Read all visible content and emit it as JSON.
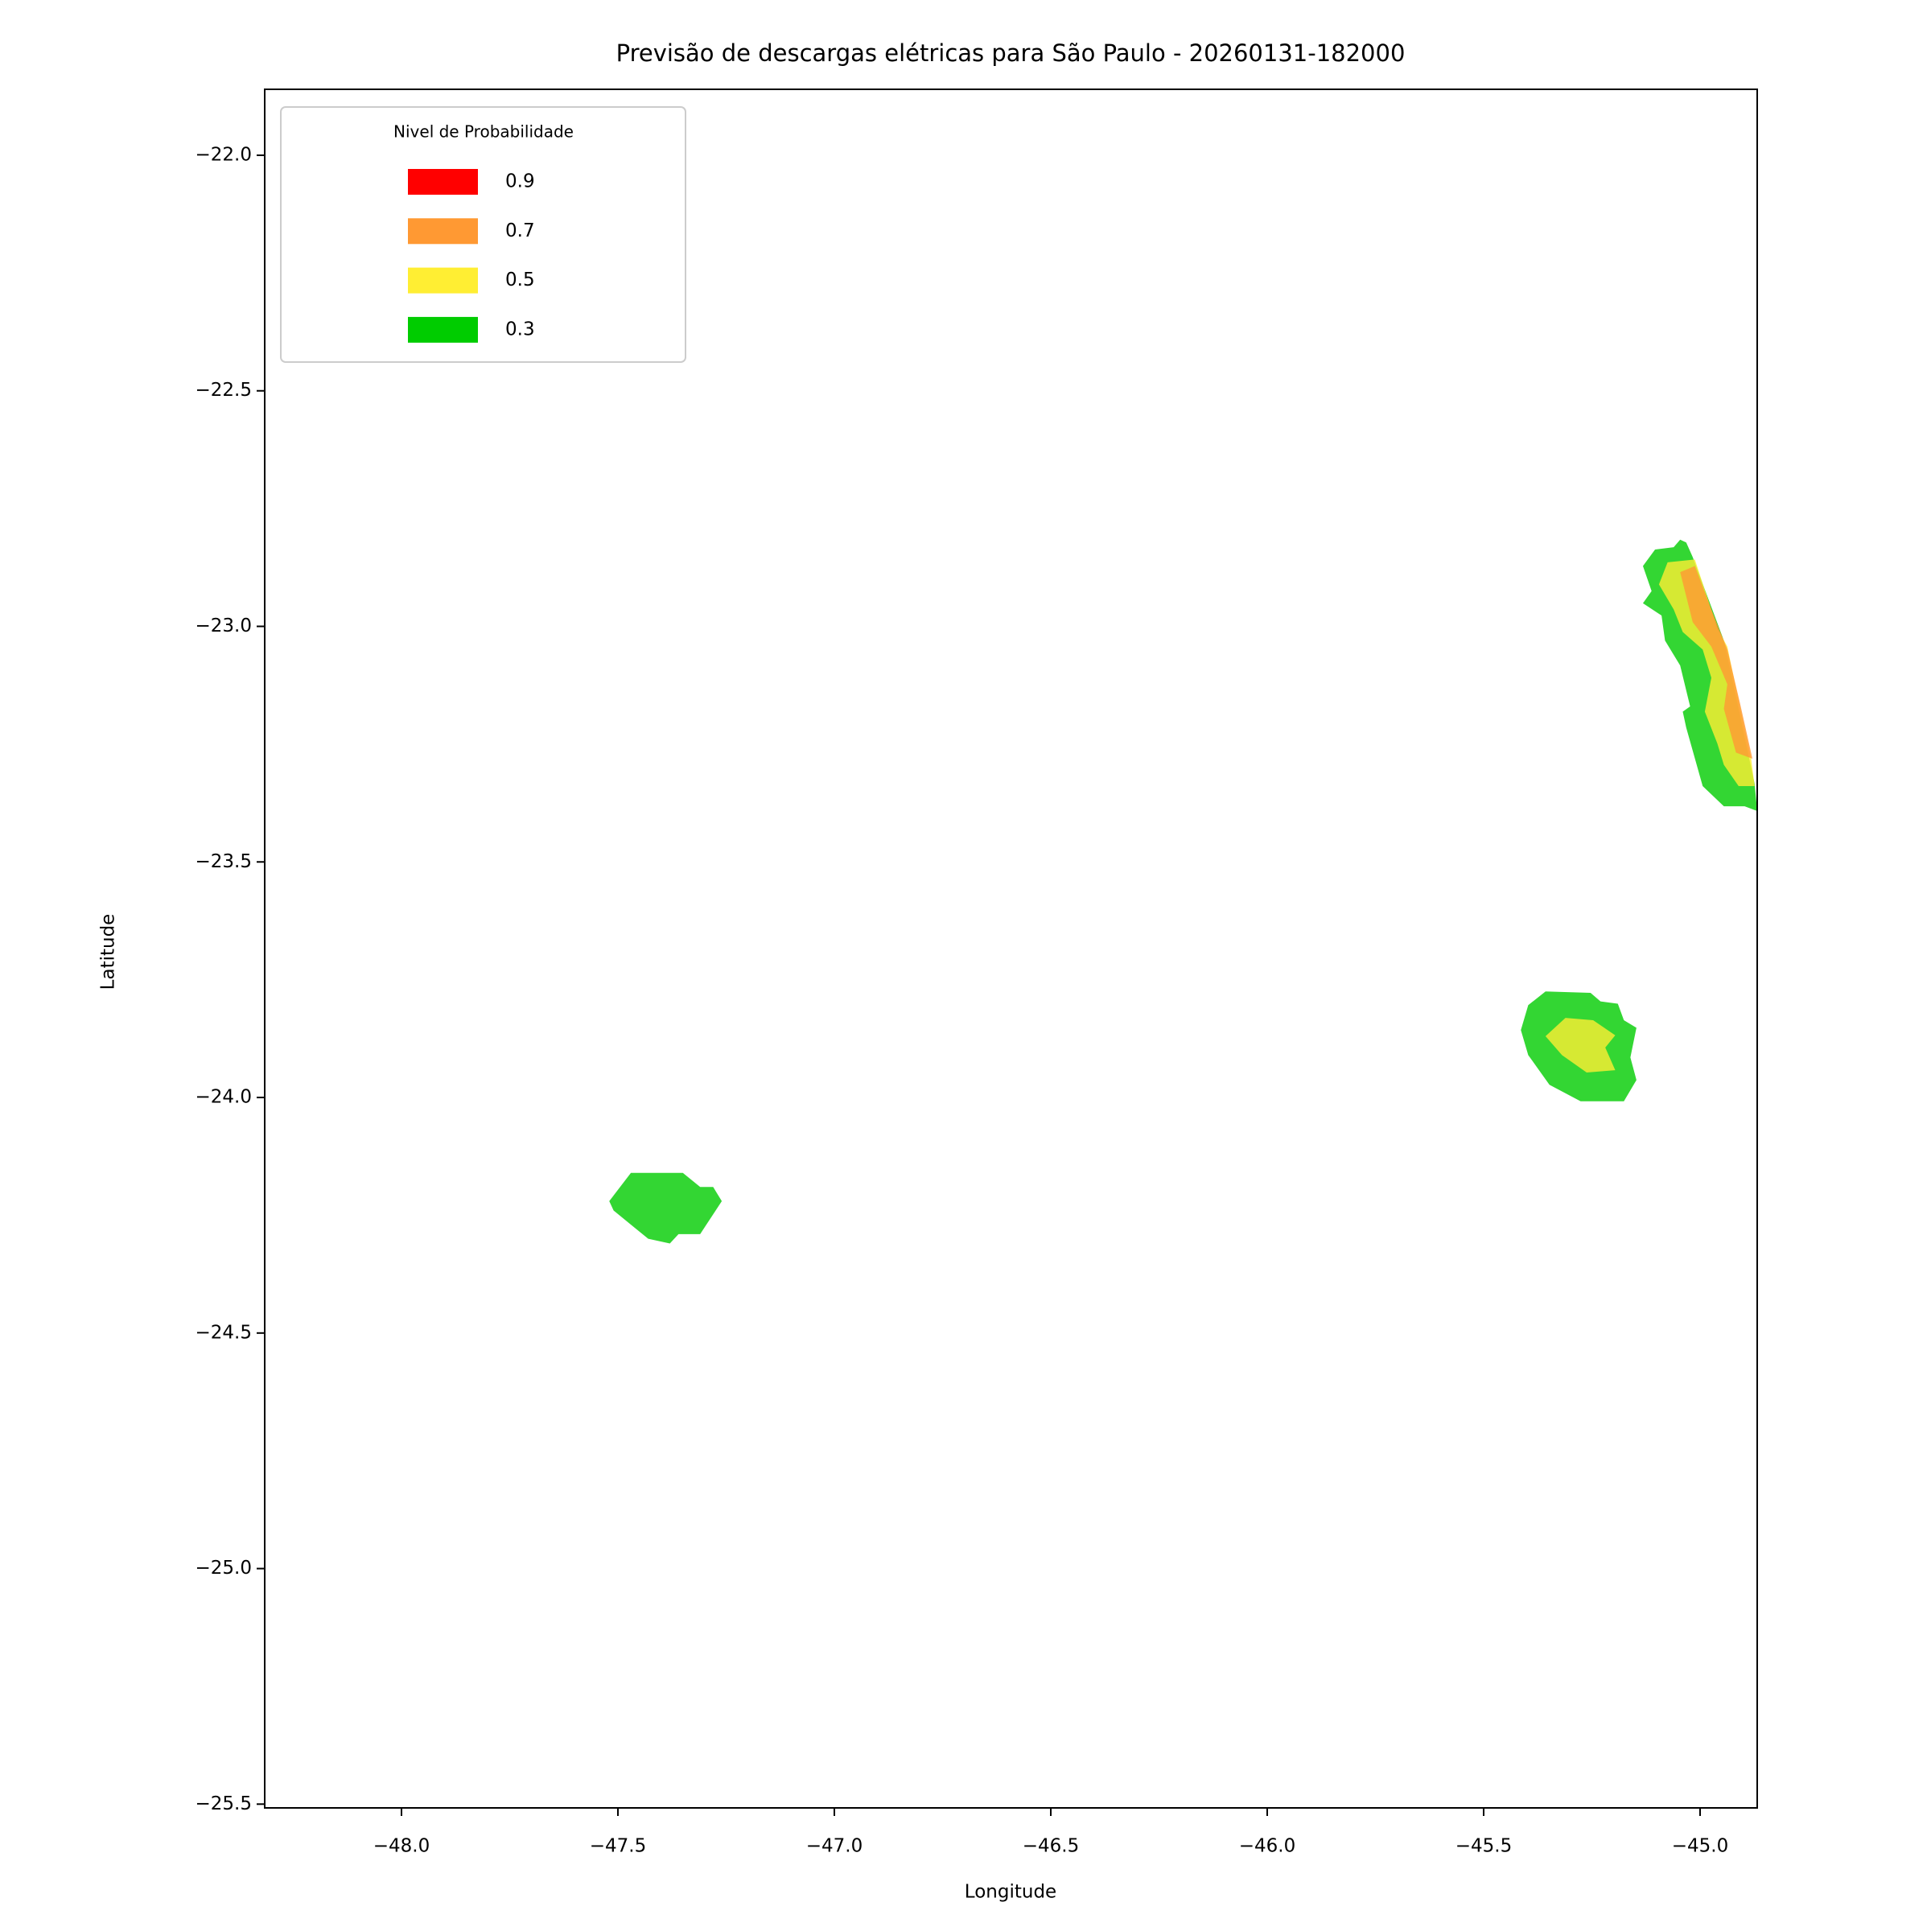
{
  "chart_data": {
    "type": "contour",
    "title": "Previsão de descargas elétricas para São Paulo - 20260131-182000",
    "xlabel": "Longitude",
    "ylabel": "Latitude",
    "xlim": [
      -48.316,
      -44.868
    ],
    "ylim": [
      -25.508,
      -21.86
    ],
    "xticks": [
      {
        "value": -48,
        "label": "−48.0"
      },
      {
        "value": -47.5,
        "label": "−47.5"
      },
      {
        "value": -47,
        "label": "−47.0"
      },
      {
        "value": -46.5,
        "label": "−46.5"
      },
      {
        "value": -46,
        "label": "−46.0"
      },
      {
        "value": -45.5,
        "label": "−45.5"
      },
      {
        "value": -45,
        "label": "−45.0"
      }
    ],
    "yticks": [
      {
        "value": -22,
        "label": "−22.0"
      },
      {
        "value": -22.5,
        "label": "−22.5"
      },
      {
        "value": -23,
        "label": "−23.0"
      },
      {
        "value": -23.5,
        "label": "−23.5"
      },
      {
        "value": -24,
        "label": "−24.0"
      },
      {
        "value": -24.5,
        "label": "−24.5"
      },
      {
        "value": -25,
        "label": "−25.0"
      },
      {
        "value": -25.5,
        "label": "−25.5"
      }
    ],
    "legend_title": "Nivel de Probabilidade",
    "legend": "upper left",
    "alpha": 0.8,
    "series": [
      {
        "name": "0.9",
        "color": "#ff0000",
        "polygons": []
      },
      {
        "name": "0.7",
        "color": "#ff9933",
        "polygons": [
          {
            "x": [
              -45.046,
              -45.012,
              -44.974,
              -44.937,
              -44.908,
              -44.879,
              -44.917,
              -44.945,
              -44.937,
              -44.974,
              -45.017
            ],
            "y": [
              -22.885,
              -22.872,
              -22.964,
              -23.049,
              -23.162,
              -23.281,
              -23.268,
              -23.175,
              -23.123,
              -23.043,
              -22.991
            ]
          }
        ]
      },
      {
        "name": "0.5",
        "color": "#ffee33",
        "polygons": [
          {
            "x": [
              -45.095,
              -45.075,
              -45.012,
              -44.96,
              -44.937,
              -44.908,
              -44.882,
              -44.874,
              -44.911,
              -44.945,
              -44.96,
              -44.989,
              -44.974,
              -44.994,
              -45.04,
              -45.061
            ],
            "y": [
              -22.911,
              -22.864,
              -22.858,
              -23.004,
              -23.043,
              -23.17,
              -23.281,
              -23.339,
              -23.339,
              -23.294,
              -23.249,
              -23.181,
              -23.109,
              -23.049,
              -23.012,
              -22.964
            ]
          },
          {
            "x": [
              -45.357,
              -45.311,
              -45.247,
              -45.196,
              -45.219,
              -45.196,
              -45.262,
              -45.319
            ],
            "y": [
              -23.87,
              -23.831,
              -23.836,
              -23.868,
              -23.894,
              -23.942,
              -23.947,
              -23.91
            ]
          }
        ]
      },
      {
        "name": "0.3",
        "color": "#00cc00",
        "polygons": [
          {
            "x": [
              -45.132,
              -45.104,
              -45.061,
              -45.046,
              -45.032,
              -45.017,
              -44.945,
              -44.917,
              -44.874,
              -44.868,
              -44.897,
              -44.945,
              -44.994,
              -45.032,
              -45.04,
              -45.023,
              -45.046,
              -45.081,
              -45.089,
              -45.132,
              -45.112
            ],
            "y": [
              -22.872,
              -22.837,
              -22.832,
              -22.816,
              -22.822,
              -22.853,
              -23.03,
              -23.149,
              -23.334,
              -23.392,
              -23.382,
              -23.382,
              -23.339,
              -23.215,
              -23.181,
              -23.17,
              -23.083,
              -23.03,
              -22.977,
              -22.951,
              -22.925
            ]
          },
          {
            "x": [
              -45.414,
              -45.397,
              -45.357,
              -45.253,
              -45.23,
              -45.19,
              -45.176,
              -45.147,
              -45.161,
              -45.147,
              -45.176,
              -45.276,
              -45.348,
              -45.397
            ],
            "y": [
              -23.857,
              -23.804,
              -23.775,
              -23.778,
              -23.796,
              -23.801,
              -23.836,
              -23.852,
              -23.915,
              -23.963,
              -24.008,
              -24.008,
              -23.973,
              -23.91
            ]
          },
          {
            "x": [
              -47.52,
              -47.47,
              -47.35,
              -47.31,
              -47.28,
              -47.26,
              -47.31,
              -47.36,
              -47.38,
              -47.43,
              -47.51
            ],
            "y": [
              -24.22,
              -24.16,
              -24.16,
              -24.19,
              -24.19,
              -24.22,
              -24.29,
              -24.29,
              -24.31,
              -24.3,
              -24.24
            ]
          }
        ]
      }
    ]
  }
}
